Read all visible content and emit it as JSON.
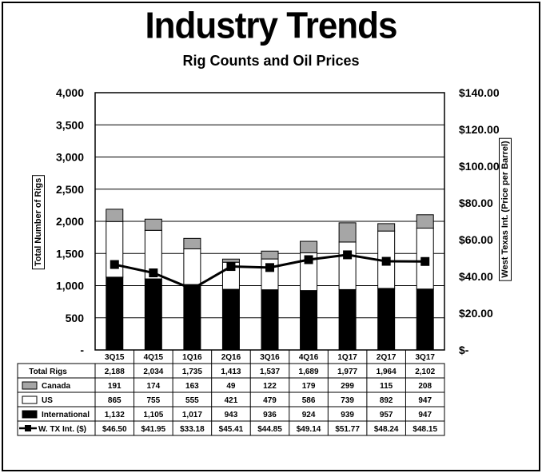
{
  "title": "Industry Trends",
  "subtitle": "Rig Counts and Oil Prices",
  "chart_data": {
    "type": "bar",
    "stacked": true,
    "categories": [
      "3Q15",
      "4Q15",
      "1Q16",
      "2Q16",
      "3Q16",
      "4Q16",
      "1Q17",
      "2Q17",
      "3Q17"
    ],
    "series": [
      {
        "name": "International",
        "type": "bar",
        "axis": "left",
        "color": "#000000",
        "values": [
          1132,
          1105,
          1017,
          943,
          936,
          924,
          939,
          957,
          947
        ],
        "labels": [
          "1,132",
          "1,105",
          "1,017",
          "943",
          "936",
          "924",
          "939",
          "957",
          "947"
        ]
      },
      {
        "name": "US",
        "type": "bar",
        "axis": "left",
        "color": "#ffffff",
        "values": [
          865,
          755,
          555,
          421,
          479,
          586,
          739,
          892,
          947
        ],
        "labels": [
          "865",
          "755",
          "555",
          "421",
          "479",
          "586",
          "739",
          "892",
          "947"
        ]
      },
      {
        "name": "Canada",
        "type": "bar",
        "axis": "left",
        "color": "#a6a6a6",
        "values": [
          191,
          174,
          163,
          49,
          122,
          179,
          299,
          115,
          208
        ],
        "labels": [
          "191",
          "174",
          "163",
          "49",
          "122",
          "179",
          "299",
          "115",
          "208"
        ]
      },
      {
        "name": "W. TX Int. ($)",
        "type": "line",
        "axis": "right",
        "color": "#000000",
        "values": [
          46.5,
          41.95,
          33.18,
          45.41,
          44.85,
          49.14,
          51.77,
          48.24,
          48.15
        ],
        "labels": [
          "$46.50",
          "$41.95",
          "$33.18",
          "$45.41",
          "$44.85",
          "$49.14",
          "$51.77",
          "$48.24",
          "$48.15"
        ]
      }
    ],
    "total_rigs": {
      "name": "Total Rigs",
      "values": [
        2188,
        2034,
        1735,
        1413,
        1537,
        1689,
        1977,
        1964,
        2102
      ],
      "labels": [
        "2,188",
        "2,034",
        "1,735",
        "1,413",
        "1,537",
        "1,689",
        "1,977",
        "1,964",
        "2,102"
      ]
    },
    "ylabel": "Total Number of Rigs",
    "ylabel_right": "West Texas Int. (Price per Barrel)",
    "ylim": [
      0,
      4000
    ],
    "ylim_right": [
      0,
      140
    ],
    "yticks": [
      0,
      500,
      1000,
      1500,
      2000,
      2500,
      3000,
      3500,
      4000
    ],
    "ytick_labels": [
      "-",
      "500",
      "1,000",
      "1,500",
      "2,000",
      "2,500",
      "3,000",
      "3,500",
      "4,000"
    ],
    "yticks_right": [
      0,
      20,
      40,
      60,
      80,
      100,
      120,
      140
    ],
    "ytick_labels_right": [
      "$-",
      "$20.00",
      "$40.00",
      "$60.00",
      "$80.00",
      "$100.00",
      "$120.00",
      "$140.00"
    ],
    "grid": true,
    "legend": "data-table"
  }
}
